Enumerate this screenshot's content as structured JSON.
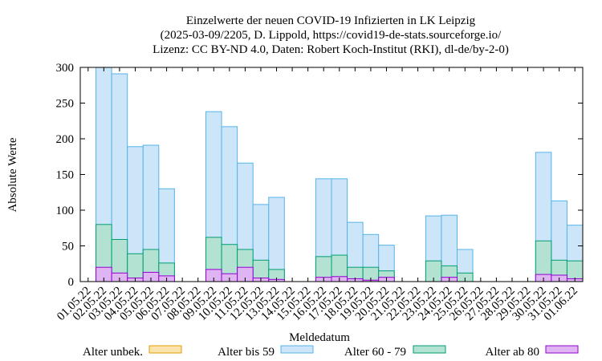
{
  "chart_data": {
    "type": "bar",
    "title_lines": [
      "Einzelwerte der neuen COVID-19 Infizierten in LK Leipzig",
      "(2025-03-09/2205, D. Lippold, https://covid19-de-stats.sourceforge.io/",
      "Lizenz: CC BY-ND 4.0, Daten: Robert Koch-Institut (RKI), dl-de/by-2-0)"
    ],
    "xlabel": "Meldedatum",
    "ylabel": "Absolute Werte",
    "ylim": [
      0,
      300
    ],
    "yticks": [
      0,
      50,
      100,
      150,
      200,
      250,
      300
    ],
    "grid": false,
    "stacked": false,
    "legend_position": "bottom",
    "categories": [
      "01.05.22",
      "02.05.22",
      "03.05.22",
      "04.05.22",
      "05.05.22",
      "06.05.22",
      "07.05.22",
      "08.05.22",
      "09.05.22",
      "10.05.22",
      "11.05.22",
      "12.05.22",
      "13.05.22",
      "14.05.22",
      "15.05.22",
      "16.05.22",
      "17.05.22",
      "18.05.22",
      "19.05.22",
      "20.05.22",
      "21.05.22",
      "22.05.22",
      "23.05.22",
      "24.05.22",
      "25.05.22",
      "26.05.22",
      "27.05.22",
      "28.05.22",
      "29.05.22",
      "30.05.22",
      "31.05.22",
      "01.06.22"
    ],
    "series": [
      {
        "name": "Alter unbek.",
        "fill": "#fbe3ad",
        "stroke": "#e69f00",
        "values": [
          0,
          0,
          0,
          0,
          0,
          0,
          0,
          0,
          0,
          0,
          0,
          0,
          0,
          0,
          0,
          0,
          0,
          0,
          0,
          0,
          0,
          0,
          0,
          0,
          0,
          0,
          0,
          0,
          0,
          0,
          0,
          0
        ]
      },
      {
        "name": "Alter bis 59",
        "fill": "#cce5f8",
        "stroke": "#56b4e9",
        "values": [
          0,
          300,
          291,
          189,
          191,
          130,
          0,
          0,
          238,
          217,
          166,
          108,
          118,
          0,
          0,
          144,
          144,
          83,
          66,
          51,
          0,
          0,
          92,
          93,
          45,
          0,
          0,
          0,
          0,
          181,
          113,
          79
        ]
      },
      {
        "name": "Alter 60 - 79",
        "fill": "#b3e2d3",
        "stroke": "#009e73",
        "values": [
          0,
          80,
          59,
          39,
          45,
          26,
          0,
          0,
          62,
          52,
          45,
          30,
          17,
          0,
          0,
          35,
          37,
          20,
          20,
          15,
          0,
          0,
          29,
          22,
          12,
          0,
          0,
          0,
          0,
          57,
          30,
          29
        ]
      },
      {
        "name": "Alter ab 80",
        "fill": "#dfb4f3",
        "stroke": "#9400d3",
        "values": [
          0,
          20,
          12,
          5,
          13,
          8,
          0,
          0,
          17,
          11,
          20,
          5,
          3,
          0,
          0,
          6,
          7,
          4,
          2,
          6,
          0,
          0,
          0,
          6,
          0,
          0,
          0,
          0,
          0,
          10,
          9,
          4
        ]
      }
    ]
  }
}
